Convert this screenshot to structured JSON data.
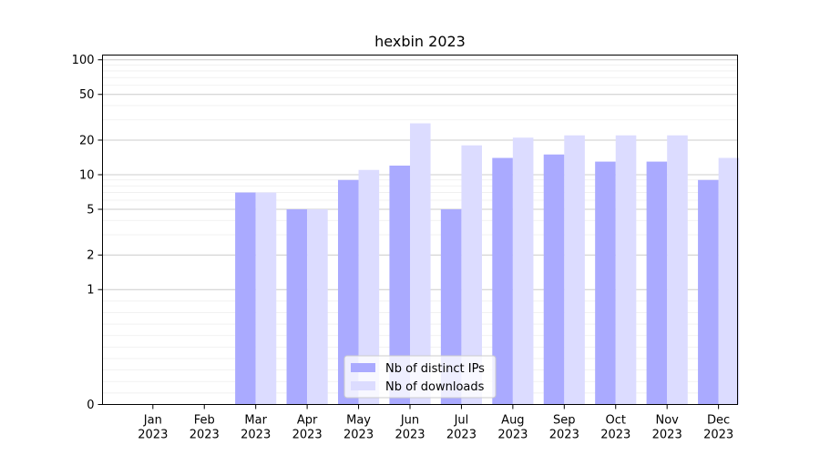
{
  "chart_data": {
    "type": "bar",
    "title": "hexbin 2023",
    "xlabel": "",
    "ylabel": "",
    "yscale": "symlog",
    "ylim": [
      0,
      110
    ],
    "yticks": [
      0,
      1,
      2,
      5,
      10,
      20,
      50,
      100
    ],
    "grid": "horizontal, major and minor",
    "legend_position": "lower-center",
    "categories": [
      [
        "Jan",
        "2023"
      ],
      [
        "Feb",
        "2023"
      ],
      [
        "Mar",
        "2023"
      ],
      [
        "Apr",
        "2023"
      ],
      [
        "May",
        "2023"
      ],
      [
        "Jun",
        "2023"
      ],
      [
        "Jul",
        "2023"
      ],
      [
        "Aug",
        "2023"
      ],
      [
        "Sep",
        "2023"
      ],
      [
        "Oct",
        "2023"
      ],
      [
        "Nov",
        "2023"
      ],
      [
        "Dec",
        "2023"
      ]
    ],
    "series": [
      {
        "name": "Nb of distinct IPs",
        "color": "#aaaaff",
        "values": [
          0,
          0,
          7,
          5,
          9,
          12,
          5,
          14,
          15,
          13,
          13,
          9
        ]
      },
      {
        "name": "Nb of downloads",
        "color": "#dcdcff",
        "values": [
          0,
          0,
          7,
          5,
          11,
          28,
          18,
          21,
          22,
          22,
          22,
          14
        ]
      }
    ]
  }
}
